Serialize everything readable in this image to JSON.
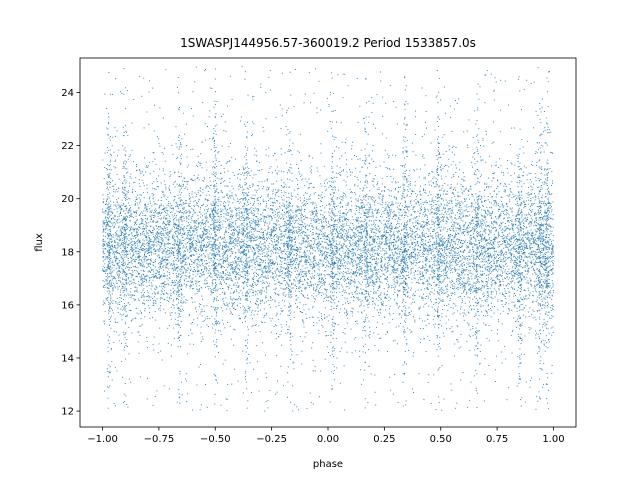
{
  "chart_data": {
    "type": "scatter",
    "title": "1SWASPJ144956.57-360019.2 Period 1533857.0s",
    "xlabel": "phase",
    "ylabel": "flux",
    "xlim": [
      -1.1,
      1.1
    ],
    "ylim": [
      11.4,
      25.3
    ],
    "xticks": [
      -1.0,
      -0.75,
      -0.5,
      -0.25,
      0.0,
      0.25,
      0.5,
      0.75,
      1.0
    ],
    "xtick_labels": [
      "−1.00",
      "−0.75",
      "−0.50",
      "−0.25",
      "0.00",
      "0.25",
      "0.50",
      "0.75",
      "1.00"
    ],
    "yticks": [
      12,
      14,
      16,
      18,
      20,
      22,
      24
    ],
    "ytick_labels": [
      "12",
      "14",
      "16",
      "18",
      "20",
      "22",
      "24"
    ],
    "grid": false,
    "marker_color": "#1f77b4",
    "x_range": [
      -1.0,
      1.0
    ],
    "y_range": [
      12.0,
      25.0
    ],
    "y_center": 18.2,
    "y_core_spread": [
      16.5,
      20.0
    ],
    "bright_streak_phases": [
      -0.97,
      -0.9,
      -0.66,
      -0.5,
      -0.36,
      -0.17,
      0.02,
      0.17,
      0.34,
      0.49,
      0.66,
      0.85,
      0.94,
      0.97
    ]
  }
}
